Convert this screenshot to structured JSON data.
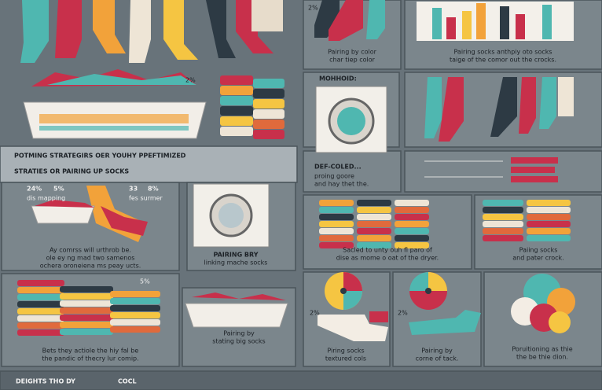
{
  "banner": {
    "line1": "POTMING STRATEGIRS OER YOUHY PPEFTIMIZED",
    "line2": "STRATIES OR PAIRING UP SOCKS"
  },
  "top": {
    "pct_a": "2%",
    "pct_b": "2%",
    "color_caption": [
      "Pairing by color",
      "char tiep color"
    ],
    "chart_caption": [
      "Pairing socks anthpiy oto socks",
      "taige of the comor out the crocks."
    ]
  },
  "method": {
    "heading": "MOHHOID:",
    "lines": [
      "DEF-COLED...",
      "proing goore",
      "and hay thet the."
    ]
  },
  "left_panel": {
    "stats": [
      "24%",
      "5%",
      "33",
      "8%"
    ],
    "sublabels": [
      "dis mapping",
      "fes surmer"
    ],
    "caption": [
      "Ay comrss will urthrob be.",
      "ole ey ng mad two samenos",
      "ochera oroneiena ms peay ucts."
    ]
  },
  "machine_panel": {
    "caption": [
      "PAIRING BRY",
      "linking mache socks"
    ]
  },
  "stack_panel": {
    "caption": [
      "Sacled to unty ouh fl paro of",
      "dise as mome o oat of the dryer."
    ]
  },
  "stack_panel_2": {
    "caption": [
      "Paiing socks",
      "and pater crock."
    ]
  },
  "bottom_left": {
    "stat": "5%",
    "caption": [
      "Bets they actiole the hiy fal be",
      "the pandic of thecry lur comip."
    ]
  },
  "basket_panel": {
    "caption": [
      "Pairing by",
      "stating big socks"
    ]
  },
  "pie_panels": [
    {
      "label": "2%",
      "caption": [
        "Piring socks",
        "textured cols"
      ]
    },
    {
      "label": "2%",
      "caption": [
        "Pairing by",
        "corne of tack."
      ]
    },
    {
      "caption": [
        "Poruitioning as thie",
        "the be thie dion."
      ]
    }
  ],
  "footer": {
    "left": "DEIGHTS THO DY",
    "right": "COCL"
  }
}
